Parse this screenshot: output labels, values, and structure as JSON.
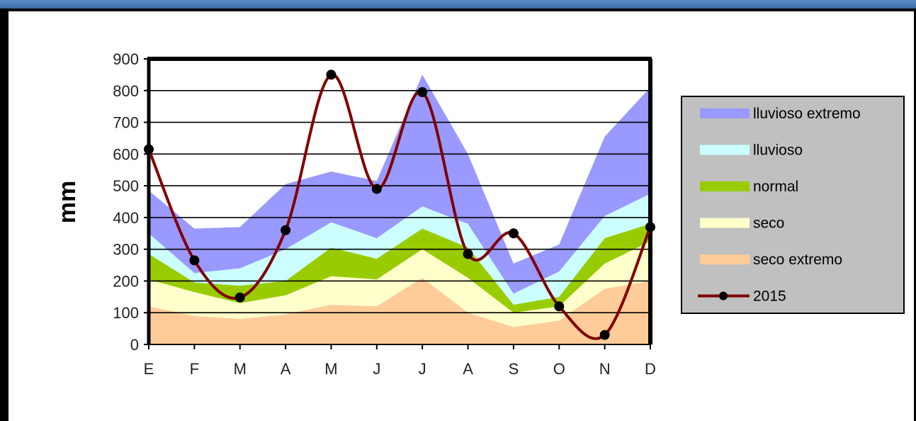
{
  "chart_data": {
    "type": "area",
    "ylabel": "mm",
    "xlabel": "",
    "ylim": [
      0,
      900
    ],
    "yticks": [
      "0",
      "100",
      "200",
      "300",
      "400",
      "500",
      "600",
      "700",
      "800",
      "900"
    ],
    "categories": [
      "E",
      "F",
      "M",
      "A",
      "M",
      "J",
      "J",
      "A",
      "S",
      "O",
      "N",
      "D"
    ],
    "grid": true,
    "legend_position": "right",
    "series": [
      {
        "name": "lluvioso extremo",
        "color": "#9999ff",
        "values": [
          485,
          365,
          370,
          505,
          545,
          515,
          850,
          600,
          255,
          315,
          655,
          810
        ]
      },
      {
        "name": "lluvioso",
        "color": "#ccffff",
        "values": [
          350,
          225,
          240,
          300,
          385,
          335,
          435,
          380,
          160,
          230,
          405,
          475
        ]
      },
      {
        "name": "normal",
        "color": "#99cc00",
        "values": [
          285,
          195,
          185,
          200,
          305,
          270,
          365,
          305,
          125,
          150,
          335,
          380
        ]
      },
      {
        "name": "seco",
        "color": "#ffffcc",
        "values": [
          205,
          165,
          130,
          155,
          215,
          205,
          300,
          210,
          100,
          120,
          255,
          325
        ]
      },
      {
        "name": "seco extremo",
        "color": "#ffcc99",
        "values": [
          120,
          90,
          80,
          95,
          125,
          120,
          210,
          100,
          55,
          75,
          175,
          200
        ]
      },
      {
        "name": "2015",
        "color": "#800000",
        "type": "line",
        "marker": "circle",
        "values": [
          615,
          265,
          148,
          360,
          850,
          490,
          795,
          285,
          350,
          120,
          30,
          370
        ]
      }
    ]
  }
}
